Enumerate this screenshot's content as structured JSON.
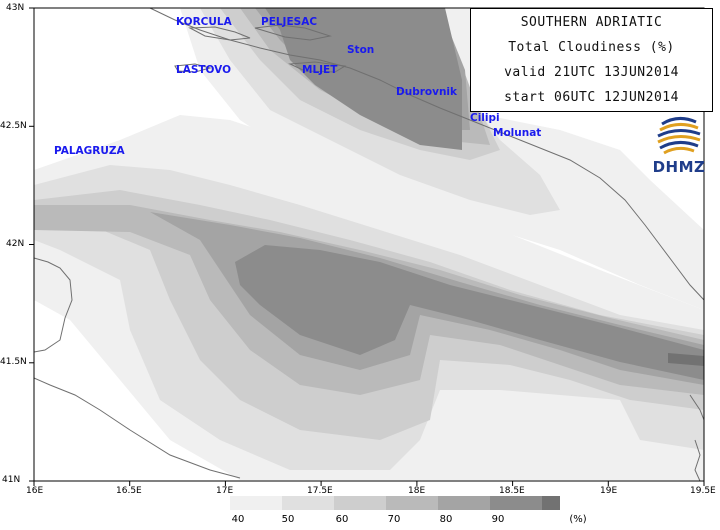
{
  "title": {
    "region": "SOUTHERN ADRIATIC",
    "parameter": "Total Cloudiness (%)",
    "valid": "valid 21UTC 13JUN2014",
    "start": "start 06UTC 12JUN2014"
  },
  "logo": {
    "text": "DHMZ"
  },
  "places": [
    {
      "name": "KORCULA",
      "lon": 16.75,
      "lat": 42.95
    },
    {
      "name": "PELJESAC",
      "lon": 17.18,
      "lat": 42.95
    },
    {
      "name": "Ston",
      "lon": 17.62,
      "lat": 42.82
    },
    {
      "name": "LASTOVO",
      "lon": 16.73,
      "lat": 42.74
    },
    {
      "name": "MLJET",
      "lon": 17.37,
      "lat": 42.74
    },
    {
      "name": "Dubrovnik",
      "lon": 17.92,
      "lat": 42.65
    },
    {
      "name": "Cilipi",
      "lon": 18.26,
      "lat": 42.52
    },
    {
      "name": "Molunat",
      "lon": 18.38,
      "lat": 42.45
    },
    {
      "name": "PALAGRUZA",
      "lon": 16.05,
      "lat": 42.39
    }
  ],
  "axes": {
    "lon_ticks": [
      "16E",
      "16.5E",
      "17E",
      "17.5E",
      "18E",
      "18.5E",
      "19E",
      "19.5E"
    ],
    "lat_ticks": [
      "41N",
      "41.5N",
      "42N",
      "42.5N",
      "43N"
    ],
    "lon_range": [
      16,
      19.5
    ],
    "lat_range": [
      41,
      43
    ]
  },
  "legend": {
    "unit": "(%)",
    "levels": [
      "40",
      "50",
      "60",
      "70",
      "80",
      "90"
    ],
    "colors": [
      "#f0f0f0",
      "#e0e0e0",
      "#cecece",
      "#bababa",
      "#a4a4a4",
      "#8c8c8c",
      "#727272"
    ]
  },
  "colors": {
    "land_line": "#707070",
    "place_text": "#1a1aee",
    "logo_blue": "#1f3d8a",
    "logo_gold": "#e0a020"
  }
}
